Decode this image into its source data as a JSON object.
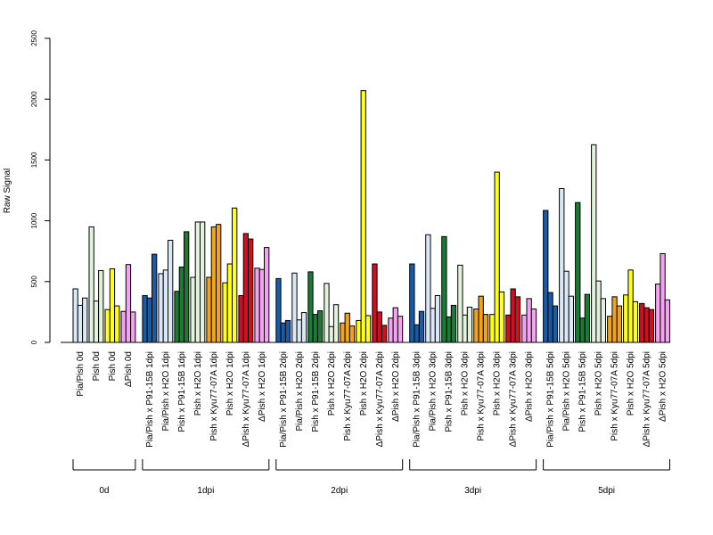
{
  "chart_data": {
    "type": "bar",
    "title": "",
    "xlabel": "",
    "ylabel": "Raw Signal",
    "ylim": [
      0,
      2500
    ],
    "yticks": [
      0,
      500,
      1000,
      1500,
      2000,
      2500
    ],
    "grid": false,
    "legend": "none",
    "colors": {
      "Pia/Pish": "#dbe8f8",
      "Pia/Pish x P91-15B": "#1a5aa6",
      "Pia/Pish x H2O": "#dbe8f8",
      "Pish x P91-15B": "#1d7a35",
      "Pish x H2O": "#e2f2dc",
      "Pish x Kyu77-07A": "#f3a21d",
      "Pish": "#ffff1a",
      "ΔPish x Kyu77-07A": "#d01020",
      "ΔPish": "#f5a3f0",
      "ΔPish x H2O": "#f5a3f0"
    },
    "groups": [
      {
        "label": "0d",
        "categories": [
          {
            "label": "Pia/Pish 0d",
            "color_key": "Pia/Pish",
            "values": [
              440,
              305,
              365
            ]
          },
          {
            "label": "Pish 0d",
            "color_key": "Pish x H2O",
            "values": [
              950,
              340,
              590
            ]
          },
          {
            "label": "Pish 0d",
            "color_key": "Pish",
            "values": [
              270,
              605,
              300
            ]
          },
          {
            "label": "ΔPish 0d",
            "color_key": "ΔPish",
            "values": [
              255,
              640,
              250
            ]
          }
        ]
      },
      {
        "label": "1dpi",
        "categories": [
          {
            "label": "Pia/Pish x P91-15B 1dpi",
            "color_key": "Pia/Pish x P91-15B",
            "values": [
              385,
              365,
              725
            ]
          },
          {
            "label": "Pia/Pish x H2O 1dpi",
            "color_key": "Pia/Pish x H2O",
            "values": [
              565,
              595,
              840
            ]
          },
          {
            "label": "Pish x P91-15B 1dpi",
            "color_key": "Pish x P91-15B",
            "values": [
              420,
              620,
              910
            ]
          },
          {
            "label": "Pish x H2O 1dpi",
            "color_key": "Pish x H2O",
            "values": [
              535,
              990,
              990
            ]
          },
          {
            "label": "Pish x Kyu77-07A 1dpi",
            "color_key": "Pish x Kyu77-07A",
            "values": [
              535,
              950,
              970
            ]
          },
          {
            "label": "Pish x H2O 1dpi",
            "color_key": "Pish",
            "values": [
              490,
              645,
              1105
            ]
          },
          {
            "label": "ΔPish x Kyu77-07A 1dpi",
            "color_key": "ΔPish x Kyu77-07A",
            "values": [
              385,
              895,
              850
            ]
          },
          {
            "label": "ΔPish x H2O 1dpi",
            "color_key": "ΔPish x H2O",
            "values": [
              610,
              600,
              780
            ]
          }
        ]
      },
      {
        "label": "2dpi",
        "categories": [
          {
            "label": "Pia/Pish x P91-15B 2dpi",
            "color_key": "Pia/Pish x P91-15B",
            "values": [
              525,
              160,
              180
            ]
          },
          {
            "label": "Pia/Pish x H2O 2dpi",
            "color_key": "Pia/Pish x H2O",
            "values": [
              570,
              185,
              245
            ]
          },
          {
            "label": "Pish x P91-15B 2dpi",
            "color_key": "Pish x P91-15B",
            "values": [
              580,
              230,
              260
            ]
          },
          {
            "label": "Pish x H2O 2dpi",
            "color_key": "Pish x H2O",
            "values": [
              485,
              130,
              310
            ]
          },
          {
            "label": "Pish x Kyu77-07A 2dpi",
            "color_key": "Pish x Kyu77-07A",
            "values": [
              160,
              240,
              135
            ]
          },
          {
            "label": "Pish x H2O 2dpi",
            "color_key": "Pish",
            "values": [
              180,
              2070,
              220
            ]
          },
          {
            "label": "ΔPish x Kyu77-07A 2dpi",
            "color_key": "ΔPish x Kyu77-07A",
            "values": [
              645,
              250,
              140
            ]
          },
          {
            "label": "ΔPish x H2O 2dpi",
            "color_key": "ΔPish x H2O",
            "values": [
              200,
              285,
              215
            ]
          }
        ]
      },
      {
        "label": "3dpi",
        "categories": [
          {
            "label": "Pia/Pish x P91-15B 3dpi",
            "color_key": "Pia/Pish x P91-15B",
            "values": [
              645,
              145,
              255
            ]
          },
          {
            "label": "Pia/Pish x H2O 3dpi",
            "color_key": "Pia/Pish x H2O",
            "values": [
              885,
              280,
              385
            ]
          },
          {
            "label": "Pish x P91-15B 3dpi",
            "color_key": "Pish x P91-15B",
            "values": [
              870,
              210,
              305
            ]
          },
          {
            "label": "Pish x H2O 3dpi",
            "color_key": "Pish x H2O",
            "values": [
              635,
              225,
              290
            ]
          },
          {
            "label": "Pish x Kyu77-07A 3dpi",
            "color_key": "Pish x Kyu77-07A",
            "values": [
              275,
              380,
              230
            ]
          },
          {
            "label": "Pish x H2O 3dpi",
            "color_key": "Pish",
            "values": [
              230,
              1400,
              415
            ]
          },
          {
            "label": "ΔPish x Kyu77-07A 3dpi",
            "color_key": "ΔPish x Kyu77-07A",
            "values": [
              225,
              440,
              375
            ]
          },
          {
            "label": "ΔPish x H2O 3dpi",
            "color_key": "ΔPish x H2O",
            "values": [
              225,
              360,
              275
            ]
          }
        ]
      },
      {
        "label": "5dpi",
        "categories": [
          {
            "label": "Pia/Pish x P91-15B 5dpi",
            "color_key": "Pia/Pish x P91-15B",
            "values": [
              1085,
              410,
              300
            ]
          },
          {
            "label": "Pia/Pish x H2O 5dpi",
            "color_key": "Pia/Pish x H2O",
            "values": [
              1265,
              585,
              380
            ]
          },
          {
            "label": "Pish x P91-15B 5dpi",
            "color_key": "Pish x P91-15B",
            "values": [
              1150,
              200,
              395
            ]
          },
          {
            "label": "Pish x H2O 5dpi",
            "color_key": "Pish x H2O",
            "values": [
              1625,
              505,
              360
            ]
          },
          {
            "label": "Pish x Kyu77-07A 5dpi",
            "color_key": "Pish x Kyu77-07A",
            "values": [
              215,
              375,
              300
            ]
          },
          {
            "label": "Pish x H2O 5dpi",
            "color_key": "Pish",
            "values": [
              390,
              595,
              335
            ]
          },
          {
            "label": "ΔPish x Kyu77-07A 5dpi",
            "color_key": "ΔPish x Kyu77-07A",
            "values": [
              320,
              285,
              270
            ]
          },
          {
            "label": "ΔPish x H2O 5dpi",
            "color_key": "ΔPish x H2O",
            "values": [
              480,
              730,
              350
            ]
          }
        ]
      }
    ]
  }
}
